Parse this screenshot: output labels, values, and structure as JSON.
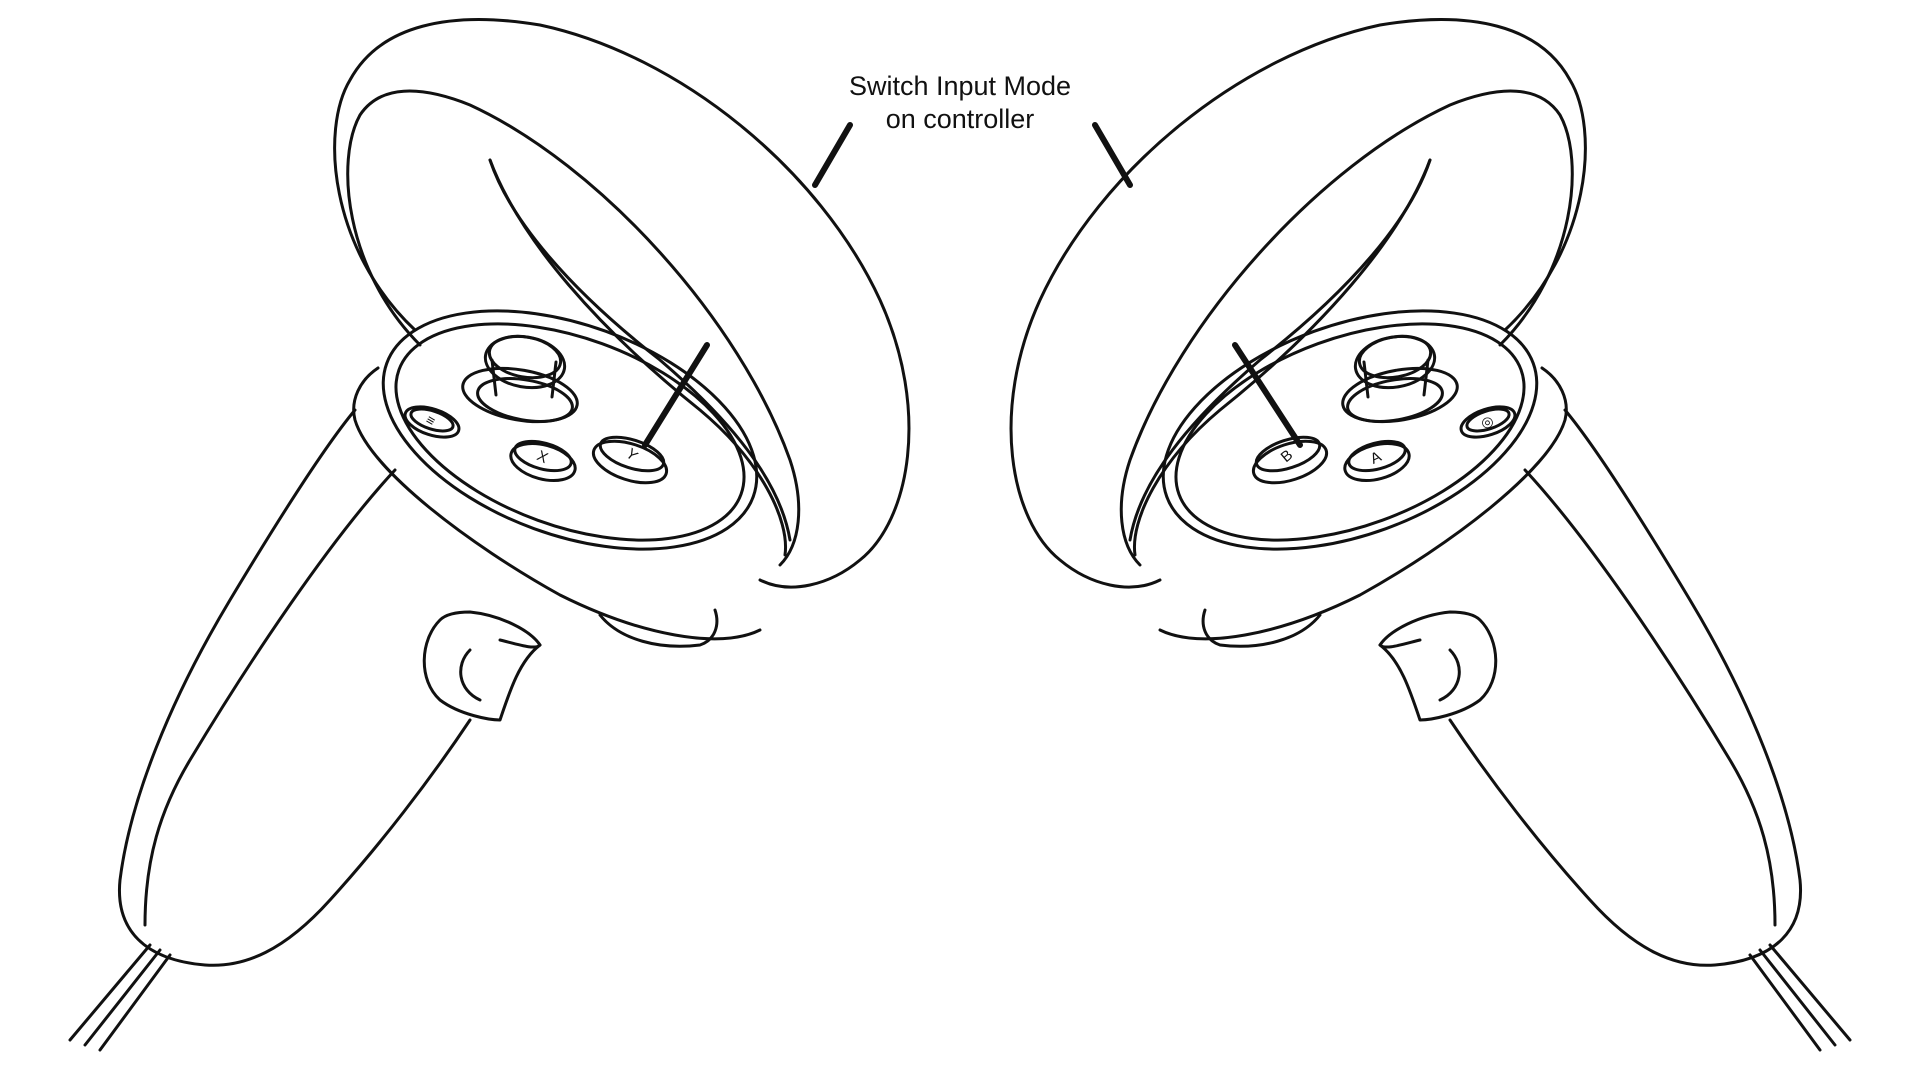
{
  "callout": {
    "line1": "Switch Input Mode",
    "line2": "on controller"
  },
  "left_controller": {
    "buttons": {
      "menu": "≡",
      "x": "X",
      "y": "Y"
    }
  },
  "right_controller": {
    "buttons": {
      "oculus": "◎",
      "a": "A",
      "b": "B"
    }
  },
  "colors": {
    "line": "#111111",
    "background": "#ffffff"
  }
}
